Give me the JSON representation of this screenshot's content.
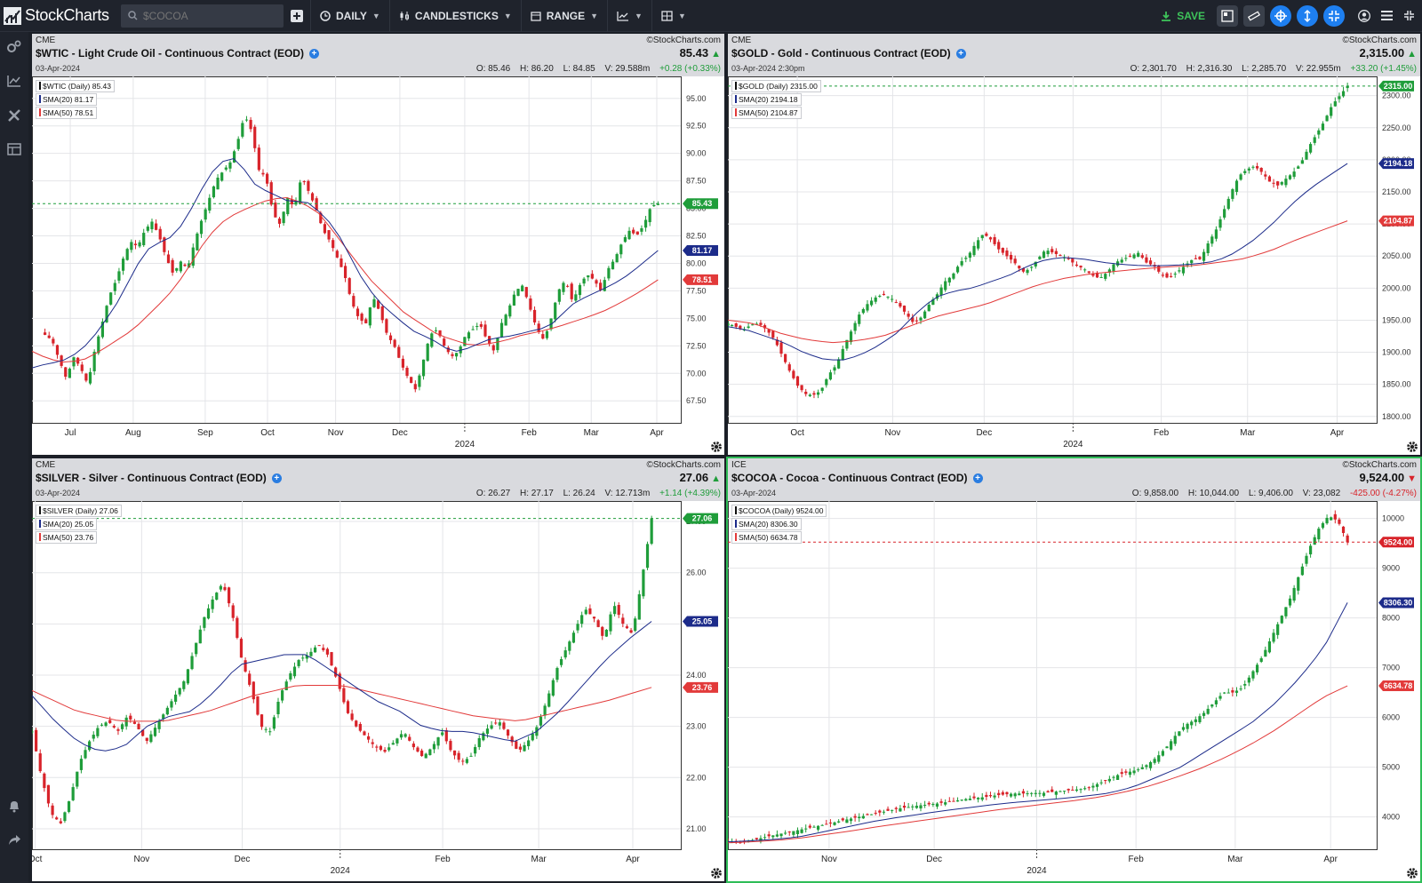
{
  "app": {
    "logo": "StockCharts",
    "search": {
      "value": "",
      "placeholder": "$COCOA"
    },
    "toolbar": {
      "period": "DAILY",
      "type": "CANDLESTICKS",
      "range": "RANGE",
      "save": "SAVE"
    }
  },
  "colors": {
    "up": "#1f9d3a",
    "down": "#d8232a",
    "sma20": "#1c2b8a",
    "sma50": "#e23a3a",
    "accent": "#1e7ff0",
    "active_border": "#2ebd57"
  },
  "charts": [
    {
      "exchange": "CME",
      "brand": "©StockCharts.com",
      "title": "$WTIC - Light Crude Oil - Continuous Contract (EOD)",
      "date": "03-Apr-2024",
      "last": "85.43",
      "direction": "up",
      "ohlc": {
        "o": "O: 85.46",
        "h": "H: 86.20",
        "l": "L: 84.85",
        "v": "V: 29.588m",
        "chg": "+0.28 (+0.33%)"
      },
      "legend": {
        "main": "$WTIC (Daily) 85.43",
        "sma20": "SMA(20) 81.17",
        "sma50": "SMA(50) 78.51"
      },
      "tags": {
        "price": "85.43",
        "sma20": "81.17",
        "sma50": "78.51"
      }
    },
    {
      "exchange": "CME",
      "brand": "©StockCharts.com",
      "title": "$GOLD - Gold - Continuous Contract (EOD)",
      "date": "03-Apr-2024 2:30pm",
      "last": "2,315.00",
      "direction": "up",
      "ohlc": {
        "o": "O: 2,301.70",
        "h": "H: 2,316.30",
        "l": "L: 2,285.70",
        "v": "V: 22.955m",
        "chg": "+33.20 (+1.45%)"
      },
      "legend": {
        "main": "$GOLD (Daily) 2315.00",
        "sma20": "SMA(20) 2194.18",
        "sma50": "SMA(50) 2104.87"
      },
      "tags": {
        "price": "2315.00",
        "sma20": "2194.18",
        "sma50": "2104.87"
      }
    },
    {
      "exchange": "CME",
      "brand": "©StockCharts.com",
      "title": "$SILVER - Silver - Continuous Contract (EOD)",
      "date": "03-Apr-2024",
      "last": "27.06",
      "direction": "up",
      "ohlc": {
        "o": "O: 26.27",
        "h": "H: 27.17",
        "l": "L: 26.24",
        "v": "V: 12.713m",
        "chg": "+1.14 (+4.39%)"
      },
      "legend": {
        "main": "$SILVER (Daily) 27.06",
        "sma20": "SMA(20) 25.05",
        "sma50": "SMA(50) 23.76"
      },
      "tags": {
        "price": "27.06",
        "sma20": "25.05",
        "sma50": "23.76"
      }
    },
    {
      "exchange": "ICE",
      "brand": "©StockCharts.com",
      "title": "$COCOA - Cocoa - Continuous Contract (EOD)",
      "date": "03-Apr-2024",
      "last": "9,524.00",
      "direction": "down",
      "ohlc": {
        "o": "O: 9,858.00",
        "h": "H: 10,044.00",
        "l": "L: 9,406.00",
        "v": "V: 23,082",
        "chg": "-425.00 (-4.27%)"
      },
      "legend": {
        "main": "$COCOA (Daily) 9524.00",
        "sma20": "SMA(20) 8306.30",
        "sma50": "SMA(50) 6634.78"
      },
      "tags": {
        "price": "9524.00",
        "sma20": "8306.30",
        "sma50": "6634.78"
      }
    }
  ],
  "chart_data": [
    {
      "type": "candlestick",
      "symbol": "$WTIC",
      "yticks": [
        "95.00",
        "92.50",
        "90.00",
        "87.50",
        "85.00",
        "82.50",
        "80.00",
        "77.50",
        "75.00",
        "72.50",
        "70.00",
        "67.50"
      ],
      "ylim": [
        65.5,
        97.0
      ],
      "xticks": [
        "Jul",
        "Aug",
        "Sep",
        "Oct",
        "Nov",
        "Dec",
        "2024",
        "Feb",
        "Mar",
        "Apr"
      ],
      "close_path": [
        73.5,
        73.0,
        71.2,
        69.5,
        71.5,
        70.5,
        69.0,
        72.2,
        74.5,
        77.0,
        78.5,
        80.5,
        82.0,
        81.5,
        83.0,
        83.8,
        82.5,
        80.5,
        79.0,
        80.2,
        79.5,
        82.0,
        84.0,
        85.8,
        87.6,
        88.4,
        89.2,
        91.0,
        93.5,
        92.0,
        88.5,
        87.8,
        84.5,
        83.5,
        86.0,
        85.0,
        88.0,
        86.5,
        85.0,
        83.0,
        82.0,
        80.5,
        79.0,
        76.5,
        75.0,
        74.5,
        77.0,
        75.5,
        73.5,
        72.5,
        70.8,
        69.5,
        68.5,
        71.0,
        73.5,
        74.0,
        72.5,
        71.5,
        72.0,
        73.5,
        74.0,
        74.5,
        73.0,
        72.0,
        74.5,
        75.8,
        77.5,
        78.0,
        76.0,
        74.0,
        73.0,
        75.0,
        77.5,
        78.5,
        76.5,
        78.0,
        79.0,
        78.5,
        77.5,
        79.5,
        80.5,
        82.0,
        83.0,
        82.5,
        83.5,
        85.2,
        85.43
      ],
      "sma20_path": [
        70.5,
        70.8,
        71.0,
        71.3,
        72.0,
        73.0,
        74.5,
        76.0,
        78.0,
        80.0,
        81.5,
        82.0,
        82.5,
        84.0,
        86.0,
        88.0,
        89.2,
        89.6,
        88.5,
        87.0,
        86.5,
        86.0,
        85.5,
        85.8,
        85.0,
        84.0,
        82.5,
        80.5,
        78.5,
        77.0,
        75.8,
        75.0,
        74.0,
        73.5,
        73.0,
        72.3,
        72.0,
        72.3,
        72.8,
        73.2,
        73.3,
        73.5,
        73.8,
        74.0,
        74.5,
        75.5,
        76.5,
        77.0,
        77.5,
        78.0,
        78.6,
        79.4,
        80.3,
        81.17
      ],
      "sma50_path": [
        72.0,
        71.3,
        71.0,
        71.2,
        72.0,
        73.0,
        74.0,
        75.5,
        77.0,
        79.0,
        81.5,
        83.5,
        84.5,
        85.2,
        85.8,
        86.0,
        85.5,
        84.5,
        82.5,
        80.5,
        78.5,
        77.0,
        75.5,
        74.5,
        73.5,
        73.0,
        72.5,
        72.7,
        73.0,
        73.5,
        73.8,
        74.2,
        74.7,
        75.2,
        75.8,
        76.6,
        77.5,
        78.51
      ]
    },
    {
      "type": "candlestick",
      "symbol": "$GOLD",
      "yticks": [
        "2300.00",
        "2250.00",
        "2200.00",
        "2150.00",
        "2100.00",
        "2050.00",
        "2000.00",
        "1950.00",
        "1900.00",
        "1850.00",
        "1800.00"
      ],
      "ylim": [
        1790,
        2330
      ],
      "xticks": [
        "Oct",
        "Nov",
        "Dec",
        "2024",
        "Feb",
        "Mar",
        "Apr"
      ],
      "close_path": [
        1945,
        1940,
        1935,
        1943,
        1945,
        1935,
        1920,
        1895,
        1870,
        1848,
        1835,
        1833,
        1840,
        1865,
        1880,
        1910,
        1935,
        1960,
        1975,
        1985,
        1990,
        1985,
        1975,
        1960,
        1945,
        1955,
        1975,
        1990,
        2010,
        2020,
        2040,
        2050,
        2070,
        2085,
        2075,
        2060,
        2050,
        2040,
        2025,
        2030,
        2045,
        2060,
        2055,
        2050,
        2045,
        2035,
        2030,
        2020,
        2015,
        2025,
        2040,
        2045,
        2050,
        2055,
        2040,
        2035,
        2020,
        2015,
        2025,
        2035,
        2045,
        2045,
        2070,
        2090,
        2120,
        2150,
        2175,
        2185,
        2190,
        2180,
        2165,
        2160,
        2170,
        2180,
        2195,
        2220,
        2240,
        2260,
        2285,
        2300,
        2315
      ],
      "sma20_path": [
        1940,
        1935,
        1925,
        1915,
        1900,
        1890,
        1887,
        1895,
        1910,
        1930,
        1960,
        1985,
        1995,
        2000,
        2010,
        2020,
        2035,
        2045,
        2048,
        2045,
        2040,
        2037,
        2035,
        2035,
        2036,
        2038,
        2042,
        2055,
        2075,
        2100,
        2130,
        2155,
        2175,
        2194.18
      ],
      "sma50_path": [
        1950,
        1945,
        1930,
        1920,
        1915,
        1918,
        1925,
        1940,
        1955,
        1965,
        1975,
        1990,
        2005,
        2015,
        2022,
        2026,
        2030,
        2033,
        2035,
        2040,
        2046,
        2058,
        2075,
        2090,
        2104.87
      ]
    },
    {
      "type": "candlestick",
      "symbol": "$SILVER",
      "yticks": [
        "27.00",
        "26.00",
        "25.00",
        "24.00",
        "23.00",
        "22.00",
        "21.00"
      ],
      "ylim": [
        20.6,
        27.4
      ],
      "xticks": [
        "Oct",
        "Nov",
        "Dec",
        "2024",
        "Feb",
        "Mar",
        "Apr"
      ],
      "close_path": [
        22.9,
        22.0,
        21.3,
        21.1,
        21.6,
        22.3,
        22.7,
        23.0,
        23.1,
        22.9,
        23.2,
        23.0,
        22.7,
        23.0,
        23.3,
        23.6,
        23.9,
        24.5,
        25.1,
        25.5,
        25.8,
        25.2,
        24.3,
        23.7,
        23.0,
        22.9,
        23.6,
        24.0,
        24.3,
        24.4,
        24.6,
        24.4,
        23.9,
        23.3,
        23.0,
        22.8,
        22.6,
        22.5,
        22.7,
        22.9,
        22.6,
        22.4,
        22.6,
        22.9,
        22.5,
        22.3,
        22.4,
        22.8,
        23.0,
        23.1,
        22.8,
        22.5,
        22.7,
        23.0,
        23.5,
        24.1,
        24.5,
        24.9,
        25.3,
        25.1,
        24.7,
        25.4,
        25.0,
        24.8,
        25.9,
        27.06
      ],
      "sma20_path": [
        23.6,
        23.1,
        22.7,
        22.5,
        22.6,
        23.0,
        23.2,
        23.3,
        23.7,
        24.2,
        24.3,
        24.4,
        24.4,
        24.1,
        23.8,
        23.5,
        23.3,
        23.0,
        22.9,
        22.9,
        22.8,
        22.7,
        22.9,
        23.3,
        23.8,
        24.3,
        24.7,
        25.05
      ],
      "sma50_path": [
        23.7,
        23.3,
        23.1,
        23.1,
        23.3,
        23.6,
        23.8,
        23.8,
        23.6,
        23.4,
        23.2,
        23.1,
        23.3,
        23.5,
        23.76
      ]
    },
    {
      "type": "candlestick",
      "symbol": "$COCOA",
      "yticks": [
        "10000",
        "9000",
        "8000",
        "7000",
        "6000",
        "5000",
        "4000"
      ],
      "ylim": [
        3350,
        10350
      ],
      "xticks": [
        "Nov",
        "Dec",
        "2024",
        "Feb",
        "Mar",
        "Apr"
      ],
      "close_path": [
        3500,
        3480,
        3510,
        3550,
        3600,
        3640,
        3680,
        3720,
        3760,
        3800,
        3840,
        3880,
        3930,
        3970,
        4010,
        4050,
        4090,
        4130,
        4170,
        4200,
        4230,
        4250,
        4270,
        4300,
        4330,
        4360,
        4380,
        4400,
        4430,
        4450,
        4470,
        4470,
        4480,
        4480,
        4500,
        4520,
        4540,
        4560,
        4600,
        4680,
        4760,
        4850,
        4900,
        4950,
        5050,
        5200,
        5400,
        5650,
        5850,
        5950,
        6100,
        6300,
        6500,
        6500,
        6600,
        6900,
        7200,
        7600,
        8000,
        8400,
        8900,
        9400,
        9800,
        10050,
        9949,
        9524
      ],
      "sma20_path": [
        3500,
        3520,
        3550,
        3600,
        3700,
        3800,
        3900,
        3980,
        4050,
        4120,
        4180,
        4240,
        4290,
        4330,
        4370,
        4420,
        4480,
        4600,
        4800,
        5000,
        5300,
        5600,
        5900,
        6300,
        6800,
        7400,
        8306.3
      ],
      "sma50_path": [
        3480,
        3500,
        3530,
        3580,
        3650,
        3720,
        3800,
        3870,
        3940,
        4010,
        4080,
        4150,
        4210,
        4270,
        4330,
        4400,
        4500,
        4620,
        4780,
        4960,
        5180,
        5430,
        5720,
        6060,
        6400,
        6634.78
      ]
    }
  ]
}
